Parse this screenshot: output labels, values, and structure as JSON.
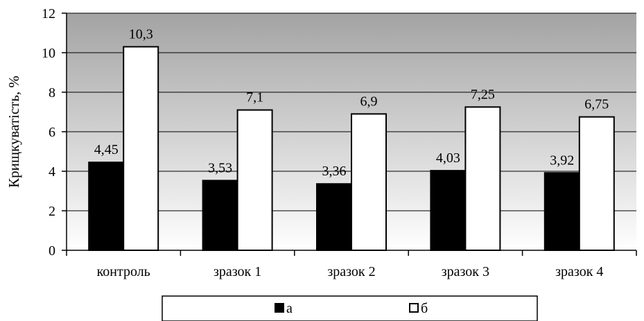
{
  "chart_data": {
    "type": "bar",
    "title": "",
    "xlabel": "",
    "ylabel": "Крищкуватість, %",
    "ylim": [
      0,
      12
    ],
    "yticks": [
      0,
      2,
      4,
      6,
      8,
      10,
      12
    ],
    "categories": [
      "контроль",
      "зразок 1",
      "зразок 2",
      "зразок 3",
      "зразок 4"
    ],
    "series": [
      {
        "name": "а",
        "values": [
          4.45,
          3.53,
          3.36,
          4.03,
          3.92
        ],
        "labels": [
          "4,45",
          "3,53",
          "3,36",
          "4,03",
          "3,92"
        ],
        "color": "#000000"
      },
      {
        "name": "б",
        "values": [
          10.3,
          7.1,
          6.9,
          7.25,
          6.75
        ],
        "labels": [
          "10,3",
          "7,1",
          "6,9",
          "7,25",
          "6,75"
        ],
        "color": "#ffffff"
      }
    ],
    "grid": true,
    "legend_position": "bottom",
    "background": "gray-gradient"
  }
}
